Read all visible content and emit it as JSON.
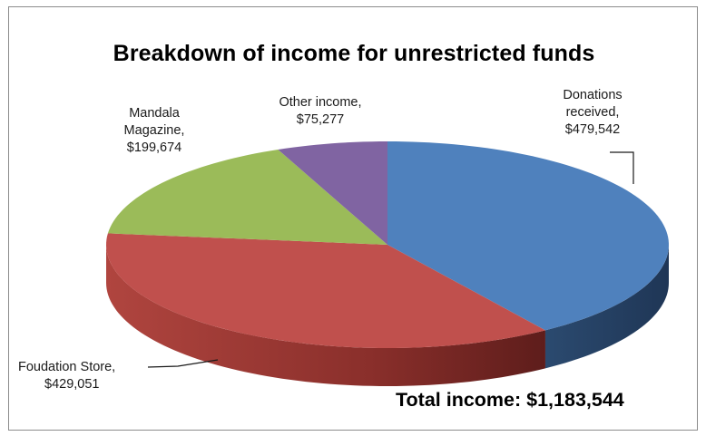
{
  "chart_data": {
    "type": "pie",
    "style": "3d",
    "title": "Breakdown of income for unrestricted funds",
    "slices": [
      {
        "label": "Donations received,",
        "value": 479542,
        "value_text": "$479,542",
        "color": "#4f81bd"
      },
      {
        "label": "Foudation Store,",
        "value": 429051,
        "value_text": "$429,051",
        "color": "#c0504d"
      },
      {
        "label": "Mandala Magazine,",
        "value": 199674,
        "value_text": "$199,674",
        "color": "#9bbb59"
      },
      {
        "label": "Other income,",
        "value": 75277,
        "value_text": "$75,277",
        "color": "#8064a2"
      }
    ],
    "total_label": "Total income: $1,183,544"
  },
  "labels": {
    "donations": {
      "line1": "Donations",
      "line2": "received,",
      "line3": "$479,542"
    },
    "store": {
      "line1": "Foudation Store,",
      "line2": "$429,051"
    },
    "magazine": {
      "line1": "Mandala",
      "line2": "Magazine,",
      "line3": "$199,674"
    },
    "other": {
      "line1": "Other income,",
      "line2": "$75,277"
    }
  }
}
